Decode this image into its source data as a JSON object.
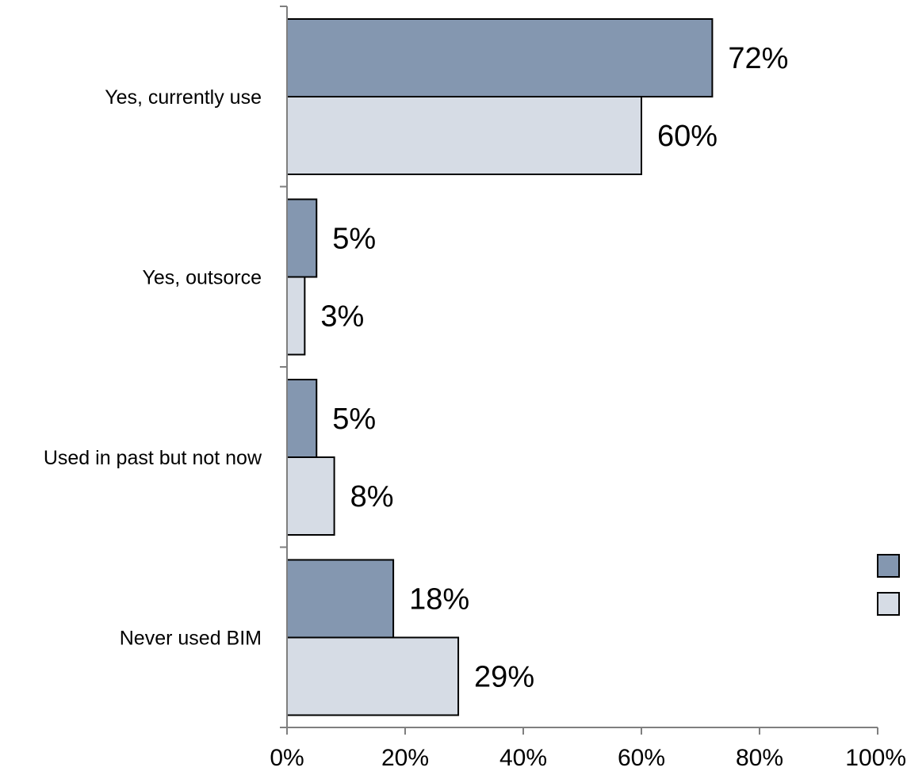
{
  "chart_data": {
    "type": "bar",
    "orientation": "horizontal",
    "categories": [
      "Yes, currently use",
      "Yes, outsorce",
      "Used in past but not now",
      "Never used BIM"
    ],
    "series": [
      {
        "values": [
          72,
          5,
          5,
          18
        ],
        "color": "#8497b0"
      },
      {
        "values": [
          60,
          3,
          8,
          29
        ],
        "color": "#d6dce5"
      }
    ],
    "data_labels": [
      [
        "72%",
        "5%",
        "5%",
        "18%"
      ],
      [
        "60%",
        "3%",
        "8%",
        "29%"
      ]
    ],
    "xlim": [
      0,
      100
    ],
    "x_ticks": [
      0,
      20,
      40,
      60,
      80,
      100
    ],
    "x_tick_labels": [
      "0%",
      "20%",
      "40%",
      "60%",
      "80%",
      "100%"
    ],
    "grid": false,
    "legend": {
      "placement": "right",
      "show_text": false
    }
  }
}
